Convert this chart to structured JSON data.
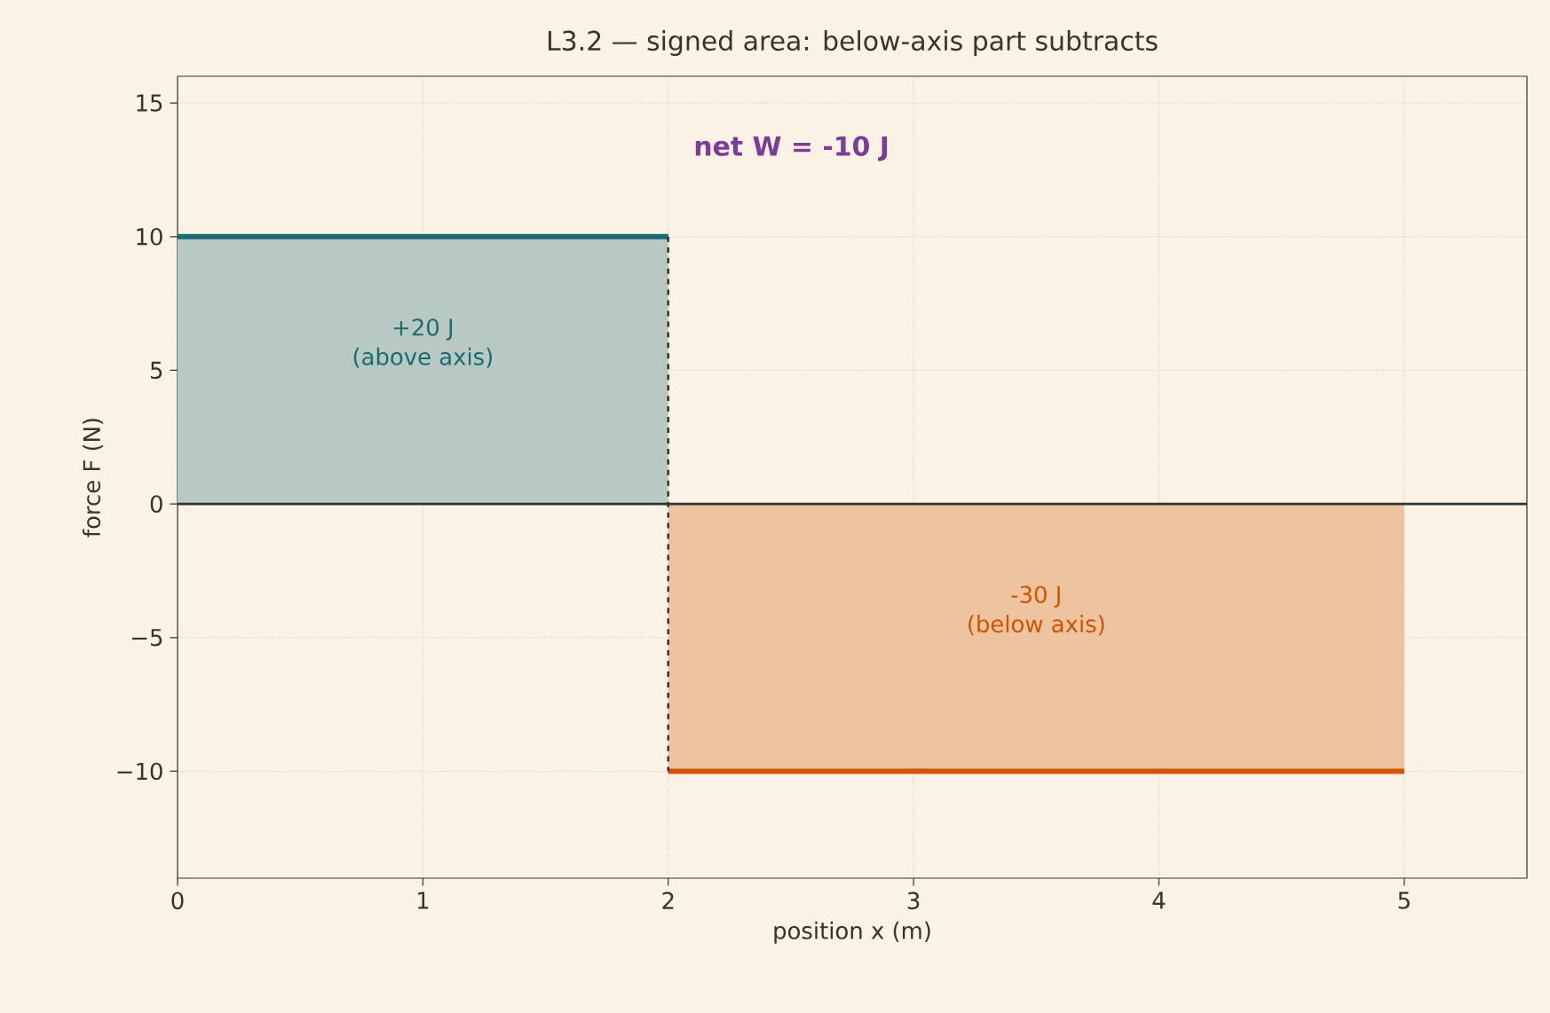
{
  "chart_data": {
    "type": "area",
    "title": "L3.2 — signed area: below-axis part subtracts",
    "xlabel": "position x (m)",
    "ylabel": "force F (N)",
    "series": [
      {
        "x": [
          0,
          2
        ],
        "values": [
          10,
          10
        ],
        "color": "#1a6b73"
      },
      {
        "x": [
          2,
          5
        ],
        "values": [
          -10,
          -10
        ],
        "color": "#d35400"
      },
      {
        "type": "line",
        "x": [
          2,
          2
        ],
        "values": [
          10,
          -10
        ],
        "color": "#3b2a20",
        "line_style": "dashed"
      }
    ],
    "xlim": [
      0,
      5.5
    ],
    "ylim": [
      -14,
      16
    ],
    "xticks": [
      0,
      1,
      2,
      3,
      4,
      5
    ],
    "yticks": [
      {
        "value": -10,
        "label": "−10"
      },
      {
        "value": -5,
        "label": "−5"
      },
      0,
      5,
      10,
      15
    ],
    "grid": true,
    "ref_lines": [
      {
        "axis": "y",
        "value": 0,
        "color": "#333333"
      }
    ],
    "annotations": [
      "+20 J",
      "(above axis)",
      "-30 J",
      "(below axis)",
      "net W = -10 J"
    ]
  }
}
